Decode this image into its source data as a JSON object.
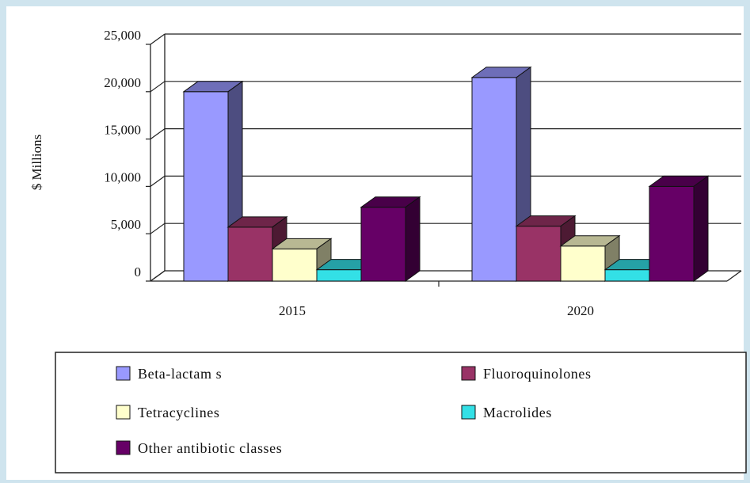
{
  "chart_data": {
    "type": "bar",
    "title": "",
    "xlabel": "",
    "ylabel": "$ Millions",
    "ylim": [
      0,
      25000
    ],
    "yticks": [
      "0",
      "5,000",
      "10,000",
      "15,000",
      "20,000",
      "25,000"
    ],
    "categories": [
      "2015",
      "2020"
    ],
    "series": [
      {
        "name": "Beta-lactam s",
        "color": "#9999ff",
        "values": [
          20000,
          21500
        ]
      },
      {
        "name": "Fluoroquinolones",
        "color": "#993366",
        "values": [
          5700,
          5800
        ]
      },
      {
        "name": "Tetracyclines",
        "color": "#ffffcc",
        "values": [
          3400,
          3700
        ]
      },
      {
        "name": "Macrolides",
        "color": "#33e0e6",
        "values": [
          1200,
          1200
        ]
      },
      {
        "name": "Other antibiotic classes",
        "color": "#660066",
        "values": [
          7800,
          10000
        ]
      }
    ],
    "grid": true,
    "legend": "bottom"
  }
}
